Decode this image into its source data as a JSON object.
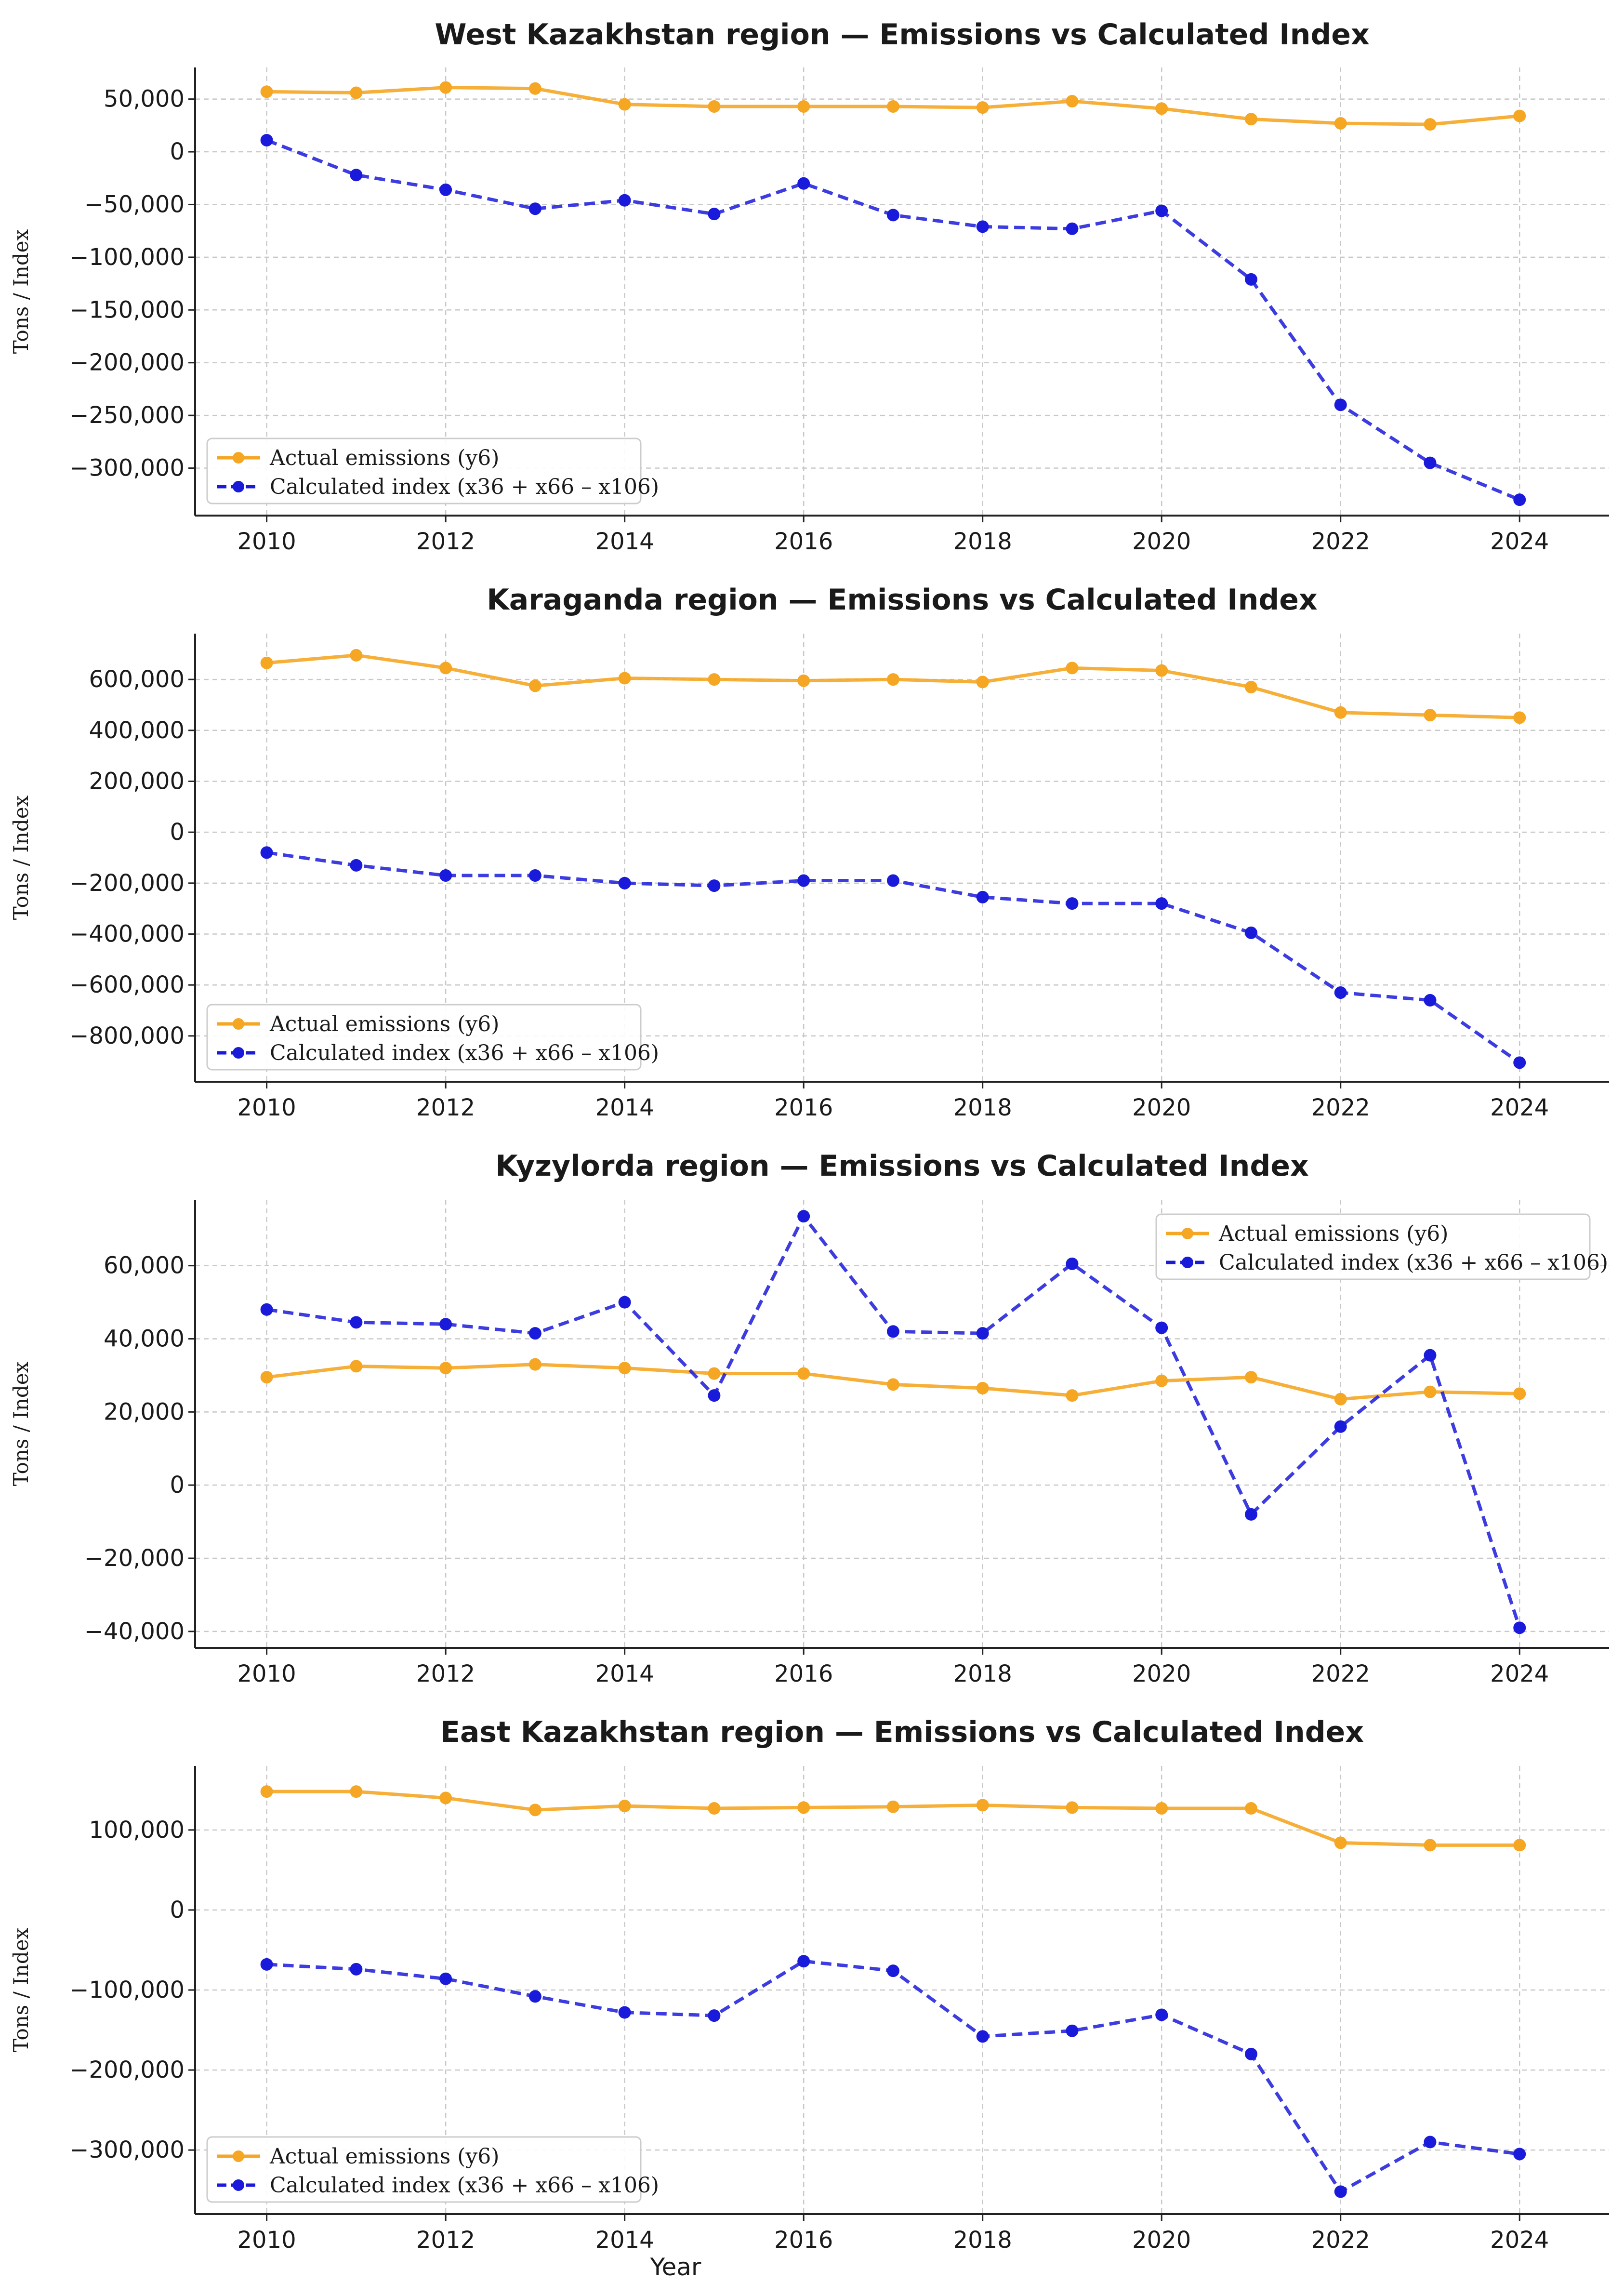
{
  "figure": {
    "xlabel": "Year",
    "colors": {
      "actual": "#f5a623",
      "calculated": "#1a1adb"
    }
  },
  "chart_data": [
    {
      "type": "line",
      "title": "West Kazakhstan region — Emissions vs Calculated Index",
      "ylabel": "Tons / Index",
      "xlabel": "",
      "x": [
        2010,
        2011,
        2012,
        2013,
        2014,
        2015,
        2016,
        2017,
        2018,
        2019,
        2020,
        2021,
        2022,
        2023,
        2024
      ],
      "xticks": [
        2010,
        2012,
        2014,
        2016,
        2018,
        2020,
        2022,
        2024
      ],
      "ylim": [
        -345000,
        80000
      ],
      "yticks": [
        50000,
        0,
        -50000,
        -100000,
        -150000,
        -200000,
        -250000,
        -300000
      ],
      "ytick_labels": [
        "50,000",
        "0",
        "−50,000",
        "−100,000",
        "−150,000",
        "−200,000",
        "−250,000",
        "−300,000"
      ],
      "grid": true,
      "legend_position": "lower-left",
      "series": [
        {
          "name": "Actual emissions (y6)",
          "style": "solid",
          "values": [
            57000,
            56000,
            61000,
            60000,
            45000,
            43000,
            43000,
            43000,
            42000,
            48000,
            41000,
            31000,
            27000,
            26000,
            34000
          ]
        },
        {
          "name": "Calculated index (x36 + x66 – x106)",
          "style": "dashed",
          "values": [
            11000,
            -22000,
            -36000,
            -54000,
            -46000,
            -59000,
            -30000,
            -60000,
            -71000,
            -73000,
            -56000,
            -121000,
            -240000,
            -295000,
            -330000
          ]
        }
      ]
    },
    {
      "type": "line",
      "title": "Karaganda region — Emissions vs Calculated Index",
      "ylabel": "Tons / Index",
      "xlabel": "",
      "x": [
        2010,
        2011,
        2012,
        2013,
        2014,
        2015,
        2016,
        2017,
        2018,
        2019,
        2020,
        2021,
        2022,
        2023,
        2024
      ],
      "xticks": [
        2010,
        2012,
        2014,
        2016,
        2018,
        2020,
        2022,
        2024
      ],
      "ylim": [
        -980000,
        780000
      ],
      "yticks": [
        600000,
        400000,
        200000,
        0,
        -200000,
        -400000,
        -600000,
        -800000
      ],
      "ytick_labels": [
        "600,000",
        "400,000",
        "200,000",
        "0",
        "−200,000",
        "−400,000",
        "−600,000",
        "−800,000"
      ],
      "grid": true,
      "legend_position": "lower-left",
      "series": [
        {
          "name": "Actual emissions (y6)",
          "style": "solid",
          "values": [
            665000,
            695000,
            645000,
            575000,
            605000,
            600000,
            595000,
            600000,
            590000,
            645000,
            635000,
            570000,
            470000,
            460000,
            450000
          ]
        },
        {
          "name": "Calculated index (x36 + x66 – x106)",
          "style": "dashed",
          "values": [
            -80000,
            -130000,
            -170000,
            -170000,
            -200000,
            -210000,
            -190000,
            -190000,
            -255000,
            -280000,
            -280000,
            -395000,
            -630000,
            -660000,
            -905000
          ]
        }
      ]
    },
    {
      "type": "line",
      "title": "Kyzylorda region — Emissions vs Calculated Index",
      "ylabel": "Tons / Index",
      "xlabel": "",
      "x": [
        2010,
        2011,
        2012,
        2013,
        2014,
        2015,
        2016,
        2017,
        2018,
        2019,
        2020,
        2021,
        2022,
        2023,
        2024
      ],
      "xticks": [
        2010,
        2012,
        2014,
        2016,
        2018,
        2020,
        2022,
        2024
      ],
      "ylim": [
        -44500,
        78000
      ],
      "yticks": [
        60000,
        40000,
        20000,
        0,
        -20000,
        -40000
      ],
      "ytick_labels": [
        "60,000",
        "40,000",
        "20,000",
        "0",
        "−20,000",
        "−40,000"
      ],
      "grid": true,
      "legend_position": "upper-right",
      "series": [
        {
          "name": "Actual emissions (y6)",
          "style": "solid",
          "values": [
            29500,
            32500,
            32000,
            33000,
            32000,
            30500,
            30500,
            27500,
            26500,
            24500,
            28500,
            29500,
            23500,
            25500,
            25000
          ]
        },
        {
          "name": "Calculated index (x36 + x66 – x106)",
          "style": "dashed",
          "values": [
            48000,
            44500,
            44000,
            41500,
            50000,
            24500,
            73500,
            42000,
            41500,
            60500,
            43000,
            -8000,
            16000,
            35500,
            -39000
          ]
        }
      ]
    },
    {
      "type": "line",
      "title": "East Kazakhstan region — Emissions vs Calculated Index",
      "ylabel": "Tons / Index",
      "xlabel": "Year",
      "x": [
        2010,
        2011,
        2012,
        2013,
        2014,
        2015,
        2016,
        2017,
        2018,
        2019,
        2020,
        2021,
        2022,
        2023,
        2024
      ],
      "xticks": [
        2010,
        2012,
        2014,
        2016,
        2018,
        2020,
        2022,
        2024
      ],
      "ylim": [
        -380000,
        180000
      ],
      "yticks": [
        100000,
        0,
        -100000,
        -200000,
        -300000
      ],
      "ytick_labels": [
        "100,000",
        "0",
        "−100,000",
        "−200,000",
        "−300,000"
      ],
      "grid": true,
      "legend_position": "lower-left",
      "series": [
        {
          "name": "Actual emissions (y6)",
          "style": "solid",
          "values": [
            148000,
            148000,
            140000,
            125000,
            130000,
            127000,
            128000,
            129000,
            131000,
            128000,
            127000,
            127000,
            84000,
            81000,
            81000
          ]
        },
        {
          "name": "Calculated index (x36 + x66 – x106)",
          "style": "dashed",
          "values": [
            -68000,
            -74000,
            -86000,
            -108000,
            -128000,
            -132000,
            -64000,
            -76000,
            -158000,
            -151000,
            -131000,
            -180000,
            -352000,
            -290000,
            -305000
          ]
        }
      ]
    }
  ]
}
